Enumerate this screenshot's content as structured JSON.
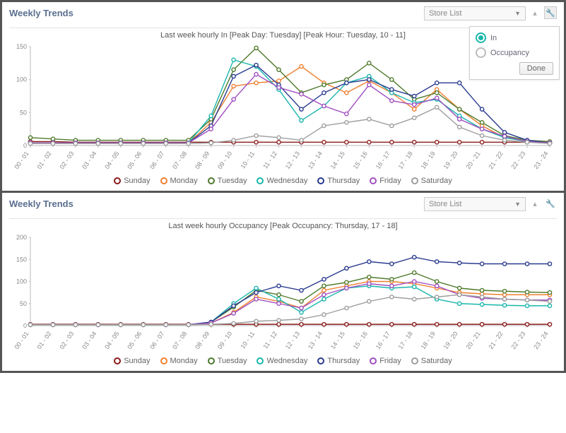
{
  "panel1": {
    "title": "Weekly Trends",
    "dropdown_label": "Store List",
    "chart_title": "Last week hourly In [Peak Day: Tuesday] [Peak Hour: Tuesday, 10 - 11]",
    "popup": {
      "opt_in": "In",
      "opt_occ": "Occupancy",
      "selected": "in",
      "done": "Done"
    },
    "chart": {
      "type": "line",
      "x_categories": [
        "00 - 01",
        "01 - 02",
        "02 - 03",
        "03 - 04",
        "04 - 05",
        "05 - 06",
        "06 - 07",
        "07 - 08",
        "08 - 09",
        "09 - 10",
        "10 - 11",
        "11 - 12",
        "12 - 13",
        "13 - 14",
        "14 - 15",
        "15 - 16",
        "16 - 17",
        "17 - 18",
        "18 - 19",
        "19 - 20",
        "20 - 21",
        "21 - 22",
        "22 - 23",
        "23 - 24"
      ],
      "ylim": [
        0,
        150
      ],
      "ytick_step": 50,
      "ytick_offset": 0,
      "background_color": "#ffffff",
      "axis_color": "#bbbbbb",
      "label_color": "#888888",
      "label_fontsize": 9,
      "marker_radius": 2.6,
      "line_width": 1.4,
      "x_label_rotate": -55,
      "series": [
        {
          "name": "Sunday",
          "color": "#8b1a1a",
          "values": [
            6,
            6,
            5,
            5,
            5,
            5,
            5,
            5,
            5,
            5,
            5,
            5,
            5,
            5,
            5,
            5,
            5,
            5,
            5,
            5,
            5,
            5,
            5,
            5
          ]
        },
        {
          "name": "Monday",
          "color": "#ef7f2f",
          "values": [
            4,
            4,
            4,
            4,
            4,
            4,
            4,
            4,
            35,
            90,
            95,
            98,
            120,
            95,
            80,
            98,
            80,
            55,
            85,
            55,
            30,
            12,
            6,
            4
          ]
        },
        {
          "name": "Tuesday",
          "color": "#4f7a2c",
          "values": [
            12,
            10,
            8,
            8,
            8,
            8,
            8,
            8,
            40,
            115,
            148,
            115,
            80,
            92,
            100,
            125,
            100,
            70,
            80,
            55,
            35,
            15,
            8,
            6
          ]
        },
        {
          "name": "Wednesday",
          "color": "#19b6ac",
          "values": [
            4,
            4,
            4,
            4,
            4,
            4,
            4,
            4,
            45,
            130,
            120,
            85,
            38,
            60,
            95,
            105,
            80,
            65,
            70,
            45,
            25,
            12,
            6,
            4
          ]
        },
        {
          "name": "Thursday",
          "color": "#2a3b8f",
          "values": [
            4,
            4,
            4,
            4,
            4,
            4,
            4,
            4,
            30,
            105,
            122,
            92,
            55,
            80,
            95,
            100,
            85,
            75,
            95,
            95,
            55,
            20,
            8,
            4
          ]
        },
        {
          "name": "Friday",
          "color": "#a04fc0",
          "values": [
            4,
            4,
            4,
            4,
            4,
            4,
            4,
            4,
            25,
            70,
            108,
            88,
            78,
            60,
            48,
            92,
            68,
            62,
            72,
            40,
            25,
            14,
            6,
            4
          ]
        },
        {
          "name": "Saturday",
          "color": "#9e9e9e",
          "values": [
            3,
            3,
            3,
            3,
            3,
            3,
            3,
            3,
            4,
            8,
            15,
            12,
            8,
            30,
            35,
            40,
            30,
            42,
            58,
            28,
            15,
            8,
            5,
            3
          ]
        }
      ]
    }
  },
  "panel2": {
    "title": "Weekly Trends",
    "dropdown_label": "Store List",
    "chart_title": "Last week hourly Occupancy [Peak Occupancy: Thursday, 17 - 18]",
    "chart": {
      "type": "line",
      "x_categories": [
        "00 - 01",
        "01 - 02",
        "02 - 03",
        "03 - 04",
        "04 - 05",
        "05 - 06",
        "06 - 07",
        "07 - 08",
        "08 - 09",
        "09 - 10",
        "10 - 11",
        "11 - 12",
        "12 - 13",
        "13 - 14",
        "14 - 15",
        "15 - 16",
        "16 - 17",
        "17 - 18",
        "18 - 19",
        "19 - 20",
        "20 - 21",
        "21 - 22",
        "22 - 23",
        "23 - 24"
      ],
      "ylim": [
        0,
        200
      ],
      "ytick_step": 50,
      "ytick_offset": 0,
      "background_color": "#ffffff",
      "axis_color": "#bbbbbb",
      "label_color": "#888888",
      "label_fontsize": 9,
      "marker_radius": 2.6,
      "line_width": 1.4,
      "x_label_rotate": -55,
      "series": [
        {
          "name": "Sunday",
          "color": "#8b1a1a",
          "values": [
            3,
            3,
            3,
            3,
            3,
            3,
            3,
            3,
            3,
            3,
            3,
            3,
            3,
            3,
            3,
            3,
            3,
            3,
            3,
            3,
            3,
            3,
            3,
            3
          ]
        },
        {
          "name": "Monday",
          "color": "#ef7f2f",
          "values": [
            2,
            2,
            2,
            2,
            2,
            2,
            2,
            2,
            6,
            30,
            65,
            55,
            40,
            80,
            90,
            100,
            100,
            95,
            85,
            75,
            72,
            70,
            70,
            70
          ]
        },
        {
          "name": "Tuesday",
          "color": "#4f7a2c",
          "values": [
            2,
            2,
            2,
            2,
            2,
            2,
            2,
            2,
            8,
            42,
            80,
            70,
            55,
            90,
            98,
            110,
            105,
            120,
            100,
            85,
            80,
            78,
            76,
            75
          ]
        },
        {
          "name": "Wednesday",
          "color": "#19b6ac",
          "values": [
            2,
            2,
            2,
            2,
            2,
            2,
            2,
            2,
            8,
            50,
            85,
            60,
            30,
            60,
            85,
            90,
            85,
            88,
            60,
            50,
            48,
            46,
            45,
            45
          ]
        },
        {
          "name": "Thursday",
          "color": "#2a3b8f",
          "values": [
            2,
            2,
            2,
            2,
            2,
            2,
            2,
            2,
            8,
            45,
            75,
            90,
            80,
            105,
            130,
            145,
            140,
            155,
            145,
            142,
            140,
            140,
            140,
            140
          ]
        },
        {
          "name": "Friday",
          "color": "#a04fc0",
          "values": [
            2,
            2,
            2,
            2,
            2,
            2,
            2,
            2,
            6,
            28,
            60,
            50,
            40,
            70,
            85,
            95,
            90,
            100,
            90,
            70,
            62,
            60,
            58,
            58
          ]
        },
        {
          "name": "Saturday",
          "color": "#9e9e9e",
          "values": [
            2,
            2,
            2,
            2,
            2,
            2,
            2,
            2,
            3,
            5,
            10,
            12,
            15,
            25,
            40,
            55,
            65,
            60,
            65,
            70,
            65,
            60,
            58,
            55
          ]
        }
      ]
    }
  }
}
